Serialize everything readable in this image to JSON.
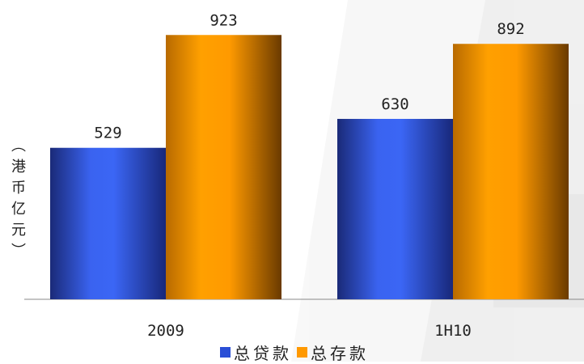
{
  "chart_data": {
    "type": "bar",
    "categories": [
      "2009",
      "1H10"
    ],
    "series": [
      {
        "name": "总贷款",
        "values": [
          529,
          630
        ],
        "color": "#2a4fd6"
      },
      {
        "name": "总存款",
        "values": [
          923,
          892
        ],
        "color": "#ff9900"
      }
    ],
    "ylabel": "（港币亿元）",
    "xlabel": "",
    "title": "",
    "ylim": [
      0,
      1000
    ],
    "grid": false,
    "legend_position": "bottom"
  }
}
